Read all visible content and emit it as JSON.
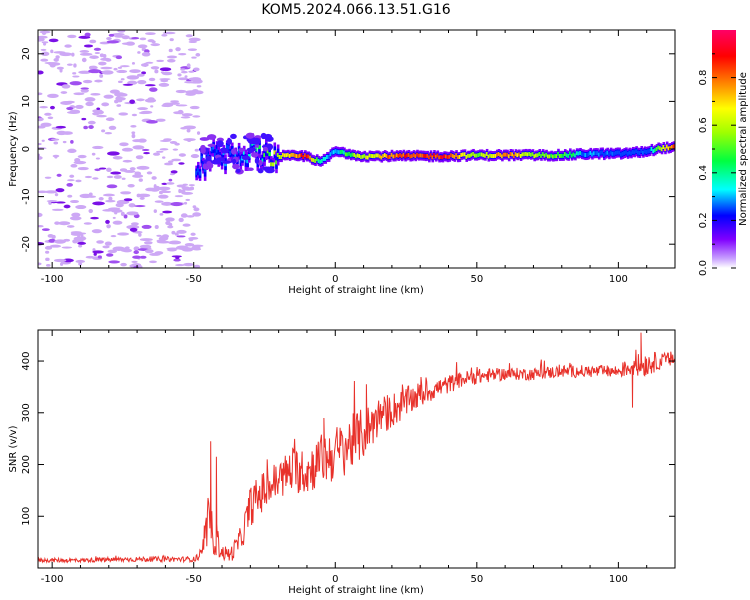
{
  "figure_title": "KOM5.2024.066.13.51.G16",
  "colors": {
    "snr_line": "#e8312a",
    "axis": "#000000"
  },
  "chart_data": [
    {
      "type": "heatmap",
      "title": "",
      "xlabel": "Height of straight line (km)",
      "ylabel": "Frequency (Hz)",
      "xlim": [
        -105,
        120
      ],
      "ylim": [
        -25,
        25
      ],
      "xticks": [
        -100,
        -50,
        0,
        50,
        100
      ],
      "yticks": [
        -20,
        -10,
        0,
        10,
        20
      ],
      "colorbar": {
        "label": "Normalized spectral amplitude",
        "range": [
          0,
          1
        ],
        "ticks": [
          0.0,
          0.2,
          0.4,
          0.6,
          0.8
        ],
        "tick_labels": [
          "0.0",
          "0.2",
          "0.4",
          "0.6",
          "0.8"
        ],
        "colormap": [
          "#ffffff",
          "#b060ff",
          "#5a00ff",
          "#0000ff",
          "#00ffff",
          "#00ff40",
          "#a0ff00",
          "#ffff00",
          "#ff8000",
          "#ff0000",
          "#ff0066"
        ]
      },
      "ridge": {
        "x": [
          -48,
          -45,
          -40,
          -35,
          -30,
          -25,
          -20,
          -15,
          -10,
          -5,
          0,
          5,
          10,
          20,
          30,
          40,
          50,
          60,
          70,
          80,
          90,
          100,
          105,
          110,
          115,
          120
        ],
        "y": [
          -4.5,
          -1.5,
          -1.5,
          -1.5,
          -0.5,
          -1.0,
          -1.5,
          -1.5,
          -1.5,
          -2.8,
          -0.5,
          -1.0,
          -1.5,
          -1.5,
          -1.5,
          -1.5,
          -1.3,
          -1.3,
          -1.3,
          -1.3,
          -1.0,
          -1.0,
          -0.8,
          -0.5,
          0.2,
          0.3
        ],
        "amplitude": [
          0.15,
          0.2,
          0.25,
          0.25,
          0.3,
          0.45,
          0.6,
          0.75,
          0.85,
          0.35,
          0.3,
          0.5,
          0.6,
          0.8,
          0.85,
          0.85,
          0.5,
          0.8,
          0.6,
          0.5,
          0.25,
          0.2,
          0.2,
          0.2,
          0.6,
          0.85
        ]
      },
      "noise_region_x": [
        -105,
        -48
      ]
    },
    {
      "type": "line",
      "title": "",
      "xlabel": "Height of straight line (km)",
      "ylabel": "SNR (v/v)",
      "xlim": [
        -105,
        120
      ],
      "ylim": [
        0,
        460
      ],
      "xticks": [
        -100,
        -50,
        0,
        50,
        100
      ],
      "yticks": [
        100,
        200,
        300,
        400
      ],
      "series": [
        {
          "trend_x": [
            -105,
            -90,
            -70,
            -50,
            -47,
            -45,
            -43,
            -40,
            -37,
            -33,
            -30,
            -25,
            -20,
            -15,
            -10,
            -5,
            0,
            5,
            10,
            15,
            20,
            25,
            30,
            35,
            40,
            45,
            50,
            60,
            70,
            80,
            90,
            100,
            105,
            110,
            115,
            120
          ],
          "trend_y": [
            15,
            15,
            17,
            17,
            25,
            85,
            65,
            30,
            25,
            60,
            120,
            150,
            170,
            190,
            185,
            210,
            220,
            240,
            260,
            290,
            305,
            320,
            335,
            345,
            355,
            365,
            370,
            375,
            375,
            380,
            380,
            380,
            390,
            395,
            400,
            405
          ],
          "noise_y": [
            4,
            4,
            5,
            5,
            15,
            45,
            40,
            15,
            15,
            25,
            40,
            40,
            40,
            45,
            45,
            50,
            55,
            55,
            50,
            40,
            35,
            30,
            25,
            20,
            18,
            15,
            15,
            12,
            12,
            12,
            12,
            12,
            20,
            25,
            15,
            15
          ],
          "peaks": [
            [
              -44,
              245
            ],
            [
              -42,
              215
            ],
            [
              -4,
              290
            ],
            [
              11,
              355
            ],
            [
              108,
              455
            ],
            [
              105,
              310
            ]
          ]
        }
      ]
    }
  ]
}
